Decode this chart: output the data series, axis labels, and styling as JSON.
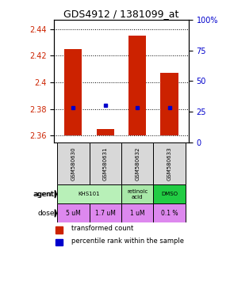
{
  "title": "GDS4912 / 1381099_at",
  "samples": [
    "GSM580630",
    "GSM580631",
    "GSM580632",
    "GSM580633"
  ],
  "bar_values": [
    2.425,
    2.365,
    2.435,
    2.407
  ],
  "bar_bottom": [
    2.36,
    2.36,
    2.36,
    2.36
  ],
  "percentile_values": [
    2.381,
    2.383,
    2.381,
    2.381
  ],
  "bar_color": "#cc2200",
  "percentile_color": "#0000cc",
  "ylim_left": [
    2.355,
    2.447
  ],
  "yticks_left": [
    2.36,
    2.38,
    2.4,
    2.42,
    2.44
  ],
  "yticklabels_left": [
    "2.36",
    "2.38",
    "2.4",
    "2.42",
    "2.44"
  ],
  "ylim_right": [
    0,
    100
  ],
  "yticks_right": [
    0,
    25,
    50,
    75,
    100
  ],
  "yticklabels_right": [
    "0",
    "25",
    "50",
    "75",
    "100%"
  ],
  "agent_spans": [
    [
      0,
      1,
      "KHS101",
      "#b8f0b8"
    ],
    [
      2,
      2,
      "retinoic\nacid",
      "#a8e8a8"
    ],
    [
      3,
      3,
      "DMSO",
      "#22cc44"
    ]
  ],
  "dose_labels": [
    "5 uM",
    "1.7 uM",
    "1 uM",
    "0.1 %"
  ],
  "dose_color": "#dd88ee",
  "sample_color": "#d8d8d8",
  "legend_bar_color": "#cc2200",
  "legend_dot_color": "#0000cc",
  "legend_text1": "transformed count",
  "legend_text2": "percentile rank within the sample"
}
